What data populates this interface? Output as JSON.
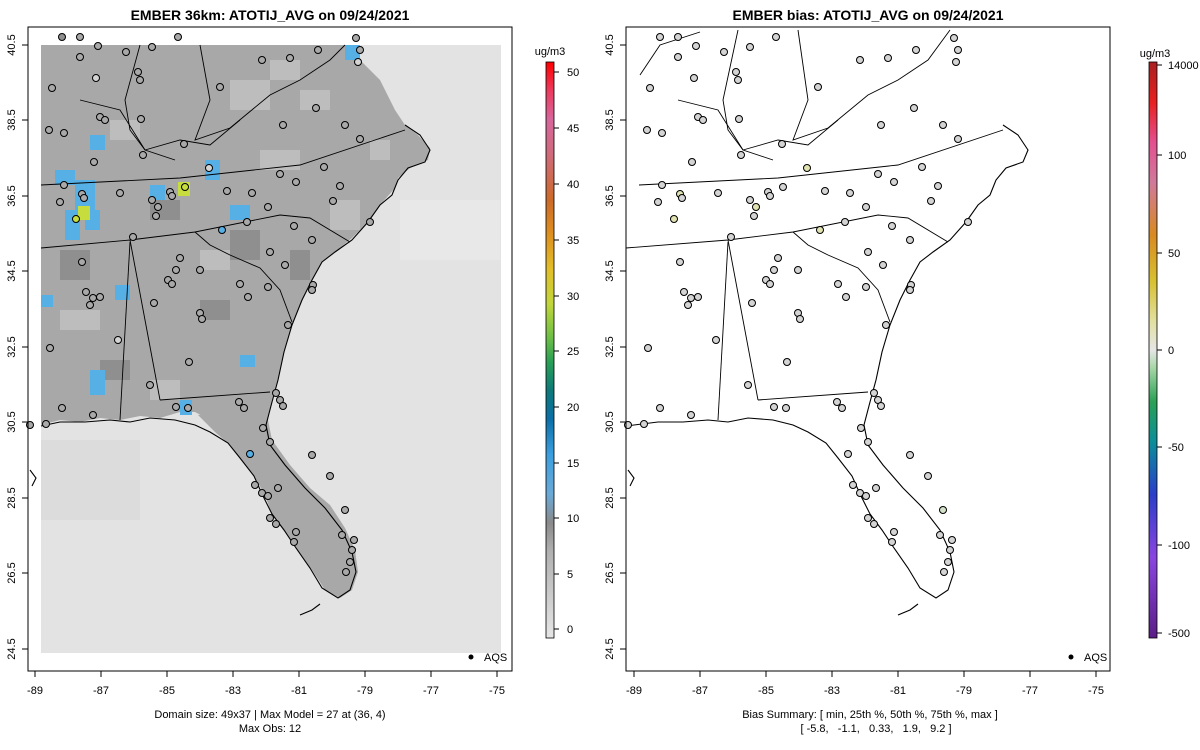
{
  "chart_data": [
    {
      "type": "heatmap",
      "title": "EMBER 36km: ATOTIJ_AVG on 09/24/2021",
      "x_ticks": [
        "-89",
        "-87",
        "-85",
        "-83",
        "-81",
        "-79",
        "-77",
        "-75"
      ],
      "y_ticks": [
        "40.5",
        "38.5",
        "36.5",
        "34.5",
        "32.5",
        "30.5",
        "28.5",
        "26.5",
        "24.5"
      ],
      "xlim": [
        -89.3,
        -74.6
      ],
      "ylim": [
        24.3,
        40.7
      ],
      "colorbar": {
        "unit": "ug/m3",
        "ticks": [
          "0",
          "5",
          "10",
          "15",
          "20",
          "25",
          "30",
          "35",
          "40",
          "45",
          "50"
        ],
        "range": [
          -1.7,
          51.3
        ]
      },
      "legend": "AQS",
      "footer": [
        "Domain size: 49x37 | Max Model = 27 at (36, 4)",
        "Max Obs: 12"
      ],
      "max_model": 27,
      "max_obs": 12
    },
    {
      "type": "scatter",
      "title": "EMBER bias: ATOTIJ_AVG on 09/24/2021",
      "x_ticks": [
        "-89",
        "-87",
        "-85",
        "-83",
        "-81",
        "-79",
        "-77",
        "-75"
      ],
      "y_ticks": [
        "40.5",
        "38.5",
        "36.5",
        "34.5",
        "32.5",
        "30.5",
        "28.5",
        "26.5",
        "24.5"
      ],
      "xlim": [
        -89.3,
        -74.6
      ],
      "ylim": [
        24.3,
        40.7
      ],
      "colorbar": {
        "unit": "ug/m3",
        "ticks": [
          "14000",
          "100",
          "50",
          "0",
          "-50",
          "-100",
          "-500"
        ]
      },
      "legend": "AQS",
      "footer": [
        "Bias Summary: [ min, 25th %, 50th %, 75th %, max ]",
        "[ -5.8,   -1.1,   0.33,   1.9,   9.2 ]"
      ],
      "bias_summary": {
        "min": -5.8,
        "p25": -1.1,
        "p50": 0.33,
        "p75": 1.9,
        "max": 9.2
      }
    }
  ],
  "colors": {
    "ocean_fill": "#e3e3e3",
    "land_fill": "#a8a8a8",
    "highlight_blue": "#56b0e6",
    "highlight_yellow": "#c7dd3e",
    "marker_gray": "#a9a9a9",
    "marker_light": "#d4d4d4"
  }
}
